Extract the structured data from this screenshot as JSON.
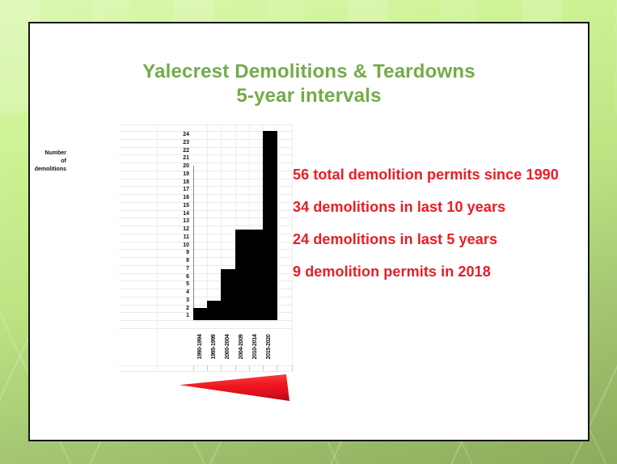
{
  "slide": {
    "title_line1": "Yalecrest Demolitions & Teardowns",
    "title_line2": "5-year intervals"
  },
  "annotations": {
    "lines": [
      "56 total demolition permits since 1990",
      "34 demolitions in last 10 years",
      "24 demolitions in last 5 years",
      "9 demolition permits in 2018"
    ]
  },
  "chart": {
    "ylabel_lines": [
      "Number",
      "of",
      "demolitions"
    ],
    "y_ticks": [
      24,
      23,
      22,
      21,
      20,
      19,
      18,
      17,
      16,
      15,
      14,
      13,
      12,
      11,
      10,
      9,
      8,
      7,
      6,
      5,
      4,
      3,
      2,
      1
    ]
  },
  "chart_data": {
    "type": "bar",
    "title": "Yalecrest Demolitions & Teardowns",
    "subtitle": "5-year intervals",
    "categories": [
      "1990-1994",
      "1995-1999",
      "2000-2004",
      "2004-2009",
      "2010-2014",
      "2015-2020"
    ],
    "values": [
      2,
      3,
      7,
      10,
      10,
      24
    ],
    "drawn_bar_rows": [
      1.5,
      2.5,
      6.5,
      11.5,
      11.5,
      24
    ],
    "xlabel": "",
    "ylabel": "Number of demolitions",
    "ylim": [
      0,
      24
    ],
    "y_tick_step": 1,
    "grid": true,
    "legend": false,
    "bar_color": "#000000",
    "annotations": [
      "56 total demolition permits since 1990",
      "34 demolitions in last 10 years",
      "24 demolitions in last 5 years",
      "9 demolition permits in 2018"
    ]
  },
  "shapes": {
    "red_wedge": "left-pointing-red-wedge"
  },
  "theme": {
    "title_green": "#72ac48",
    "accent_red": "#ea1c25",
    "bar_black": "#000000",
    "grid_gray": "#e9e9e9",
    "axis_gray": "#8a8a8a",
    "slide_border": "#151515",
    "background_green_light": "#dcf8b2",
    "background_green_dark": "#8dab5c"
  }
}
